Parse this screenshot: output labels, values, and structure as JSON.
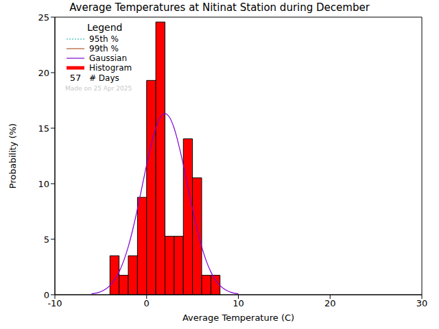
{
  "chart_data": {
    "type": "histogram",
    "title": "Average Temperatures at Nitinat Station during December",
    "x_label": "Average Temperature (C)",
    "y_label": "Probability (%)",
    "xlim": [
      -10,
      30
    ],
    "xticks": [
      -10,
      0,
      10,
      20,
      30
    ],
    "ylim": [
      0,
      25
    ],
    "yticks": [
      0,
      5,
      10,
      15,
      20,
      25
    ],
    "grid": false,
    "legend": "upper left",
    "legend_title": "Legend",
    "bins": [
      -4,
      -3,
      -2,
      -1,
      0,
      1,
      2,
      3,
      4,
      5,
      6,
      7,
      8
    ],
    "series": [
      {
        "name": "95th %",
        "type": "line",
        "color": "#00b0b0",
        "line_style": "dotted",
        "x": [],
        "values": []
      },
      {
        "name": "99th %",
        "type": "line",
        "color": "#b05a28",
        "line_style": "solid",
        "x": [],
        "values": []
      },
      {
        "name": "Gaussian",
        "type": "line",
        "color": "#8000d0",
        "line_style": "solid",
        "x": [
          -6,
          -5.5,
          -5,
          -4.5,
          -4,
          -3.5,
          -3,
          -2.5,
          -2,
          -1.5,
          -1,
          -0.5,
          0,
          0.5,
          1,
          1.5,
          2,
          2.5,
          3,
          3.5,
          4,
          4.5,
          5,
          5.5,
          6,
          6.5,
          7,
          7.5,
          8,
          8.5,
          9,
          9.5,
          10
        ],
        "values": [
          0.08,
          0.15,
          0.28,
          0.49,
          0.83,
          1.33,
          2.06,
          3.05,
          4.33,
          5.91,
          7.74,
          9.72,
          11.7,
          13.5,
          15.0,
          15.97,
          16.3,
          15.97,
          15.0,
          13.5,
          11.7,
          9.72,
          7.74,
          5.91,
          4.33,
          3.05,
          2.06,
          1.33,
          0.83,
          0.49,
          0.28,
          0.15,
          0.08
        ]
      },
      {
        "name": "Histogram",
        "type": "histogram",
        "color": "#ff0000",
        "values": [
          3.51,
          1.75,
          3.51,
          8.77,
          19.3,
          24.56,
          5.26,
          5.26,
          14.04,
          10.53,
          1.75,
          1.75
        ]
      }
    ],
    "days": {
      "value": 57,
      "label": "# Days"
    },
    "note": "Made on 25 Apr 2025"
  }
}
